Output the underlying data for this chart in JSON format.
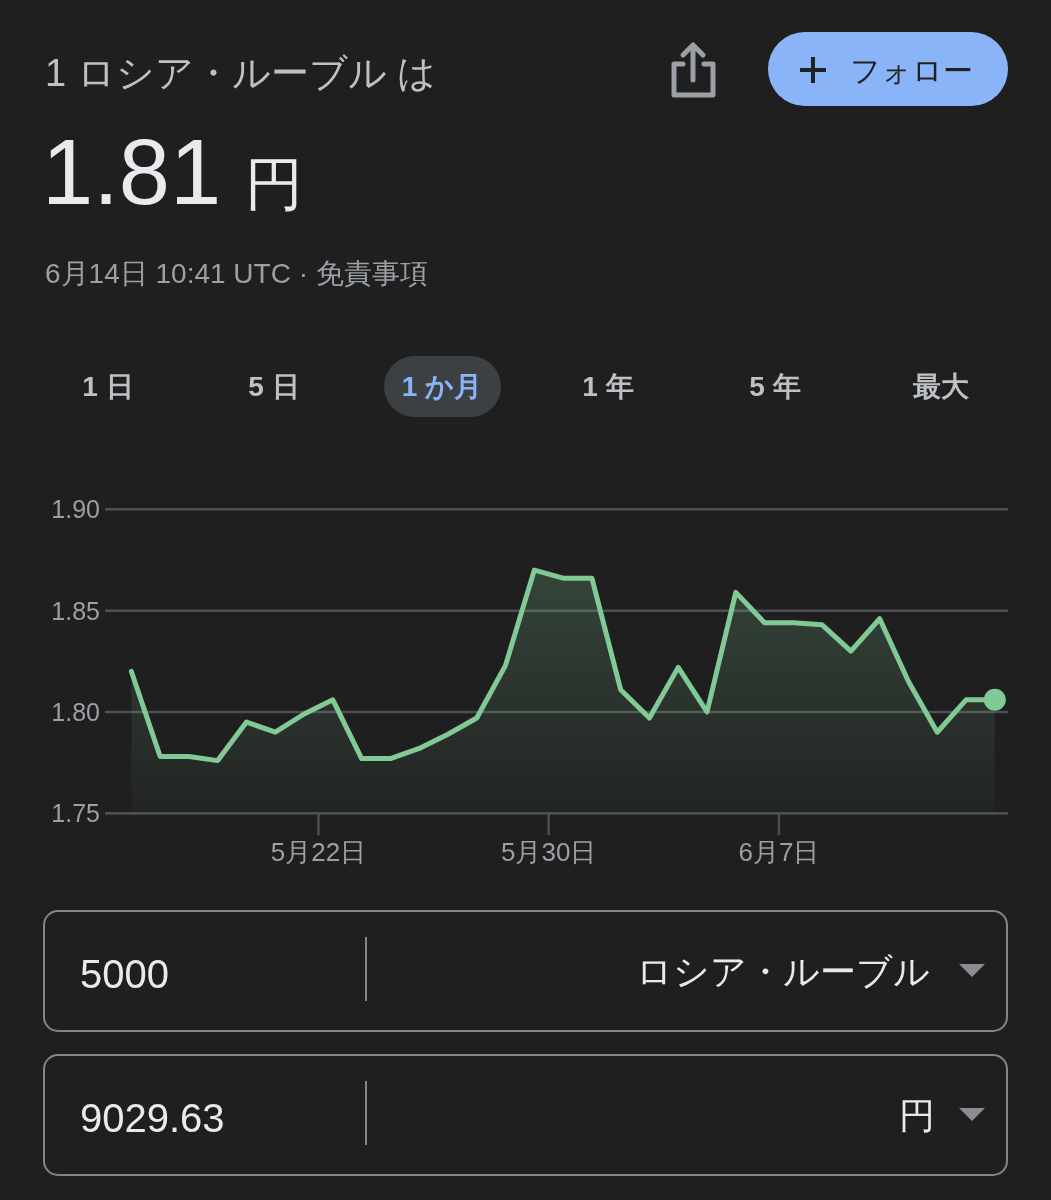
{
  "chart_data": {
    "type": "area",
    "title": "1 ロシア・ルーブル は",
    "subtitle": "1.81 円",
    "annotations": [
      "6月14日 10:41 UTC · 免責事項",
      "フォロー",
      "1 日",
      "5 日",
      "1 か月",
      "1 年",
      "5 年",
      "最大",
      "5000",
      "ロシア・ルーブル",
      "9029.63",
      "円"
    ],
    "x": [
      "--05-15T12:00",
      "--05-16T12:00",
      "--05-17T12:00",
      "--05-18T12:00",
      "--05-19T12:00",
      "--05-20T12:00",
      "--05-21T12:00",
      "--05-22T12:00",
      "--05-23T12:00",
      "--05-24T12:00",
      "--05-25T12:00",
      "--05-26T12:00",
      "--05-27T12:00",
      "--05-28T12:00",
      "--05-29T12:00",
      "--05-30T12:00",
      "--05-31T12:00",
      "--06-01T12:00",
      "--06-02T12:00",
      "--06-03T12:00",
      "--06-04T12:00",
      "--06-05T12:00",
      "--06-06T12:00",
      "--06-07T12:00",
      "--06-08T12:00",
      "--06-09T12:00",
      "--06-10T12:00",
      "--06-11T12:00",
      "--06-12T12:00",
      "--06-13T12:00",
      "--06-14T12:00"
    ],
    "values": [
      1.82,
      1.778,
      1.778,
      1.776,
      1.795,
      1.79,
      1.799,
      1.806,
      1.777,
      1.777,
      1.782,
      1.789,
      1.797,
      1.823,
      1.87,
      1.866,
      1.866,
      1.811,
      1.797,
      1.822,
      1.8,
      1.859,
      1.844,
      1.844,
      1.843,
      1.83,
      1.846,
      1.815,
      1.79,
      1.806,
      1.806
    ],
    "color": "#81c995",
    "xlim": [
      "--05-14T14:00",
      "--06-14T23:00"
    ],
    "xticks": [
      {
        "value": "--05-22",
        "label": "5月22日"
      },
      {
        "value": "--05-30",
        "label": "5月30日"
      },
      {
        "value": "--06-07",
        "label": "6月7日"
      }
    ],
    "ylim": [
      1.75,
      1.9
    ],
    "yticks": [
      {
        "value": 1.75,
        "label": "1.75"
      },
      {
        "value": 1.8,
        "label": "1.80"
      },
      {
        "value": 1.85,
        "label": "1.85"
      },
      {
        "value": 1.9,
        "label": "1.90"
      }
    ],
    "grid": "y",
    "line_style": "solid"
  }
}
